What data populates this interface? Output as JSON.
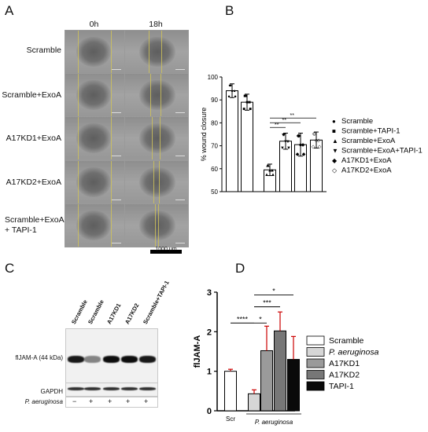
{
  "panels": {
    "a": "A",
    "b": "B",
    "c": "C",
    "d": "D"
  },
  "panel_a": {
    "columns": [
      "0h",
      "18h"
    ],
    "rows": [
      "Scramble",
      "Scramble+ExoA",
      "A17KD1+ExoA",
      "A17KD2+ExoA",
      "Scramble+ExoA\n+ TAPI-1"
    ],
    "scale_bar_label": "1000 μm"
  },
  "panel_c": {
    "lanes": [
      "Scramble",
      "Scramble",
      "A17KD1",
      "A17KD2",
      "Scramble+TAPI-1"
    ],
    "band1_label": "flJAM-A (44 kDa)",
    "band2_label": "GAPDH",
    "treatment_label": "P. aeruginosa",
    "treatment_signs": [
      "−",
      "+",
      "+",
      "+",
      "+"
    ]
  },
  "chart_data": [
    {
      "type": "bar",
      "panel": "B",
      "ylabel": "% wound closure",
      "ylim": [
        50,
        100
      ],
      "yticks": [
        50,
        60,
        70,
        80,
        90,
        100
      ],
      "categories": [
        "Scramble",
        "Scramble+TAPI-1",
        "Scramble+ExoA",
        "Scramble+ExoA+TAPI-1",
        "A17KD1+ExoA",
        "A17KD2+ExoA"
      ],
      "values": [
        94,
        89,
        59.5,
        72,
        70.5,
        72.5
      ],
      "errors": [
        3,
        3.5,
        2.5,
        3.5,
        5,
        3.5
      ],
      "markers": [
        "●",
        "■",
        "▲",
        "▼",
        "◆",
        "◇"
      ],
      "significance": [
        {
          "from": 2,
          "to": 3,
          "label": "**"
        },
        {
          "from": 2,
          "to": 4,
          "label": "**"
        },
        {
          "from": 2,
          "to": 5,
          "label": "**"
        }
      ],
      "legend": [
        "Scramble",
        "Scramble+TAPI-1",
        "Scramble+ExoA",
        "Scramble+ExoA+TAPI-1",
        "A17KD1+ExoA",
        "A17KD2+ExoA"
      ]
    },
    {
      "type": "bar",
      "panel": "D",
      "ylabel": "flJAM-A",
      "ylim": [
        0,
        3
      ],
      "yticks": [
        0,
        1,
        2,
        3
      ],
      "categories": [
        "Scramble",
        "P. aeruginosa",
        "A17KD1",
        "A17KD2",
        "TAPI-1"
      ],
      "values": [
        1.0,
        0.43,
        1.52,
        2.02,
        1.3
      ],
      "errors": [
        0.05,
        0.1,
        0.62,
        0.48,
        0.58
      ],
      "colors": [
        "#ffffff",
        "#d6d6d6",
        "#9a9a9a",
        "#777777",
        "#0a0a0a"
      ],
      "xgroups": [
        "Scr",
        "P. aeruginosa"
      ],
      "significance": [
        {
          "from": 0,
          "to": 1,
          "label": "****"
        },
        {
          "from": 1,
          "to": 2,
          "label": "*"
        },
        {
          "from": 1,
          "to": 3,
          "label": "***"
        },
        {
          "from": 1,
          "to": 4,
          "label": "*"
        }
      ],
      "legend": [
        "Scramble",
        "P. aeruginosa",
        "A17KD1",
        "A17KD2",
        "TAPI-1"
      ]
    }
  ]
}
